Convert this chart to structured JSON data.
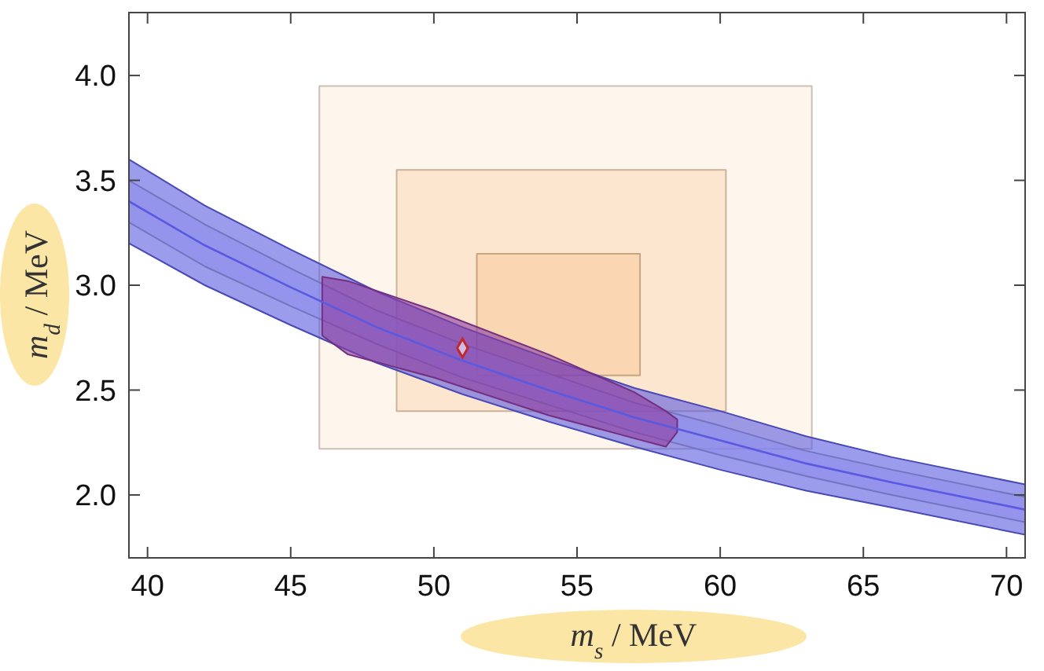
{
  "chart_data": {
    "type": "line",
    "xlabel": "m$_{s}$ / MeV",
    "ylabel": "m$_{d}$ / MeV",
    "xlim": [
      39.35,
      70.65
    ],
    "ylim": [
      1.7,
      4.3
    ],
    "xticks": [
      40,
      45,
      50,
      55,
      60,
      65,
      70
    ],
    "yticks": [
      {
        "value": 2,
        "label": "2.0"
      },
      {
        "value": 2.5,
        "label": "2.5"
      },
      {
        "value": 3,
        "label": "3.0"
      },
      {
        "value": 3.5,
        "label": "3.5"
      },
      {
        "value": 4,
        "label": "4.0"
      }
    ],
    "grid": false,
    "series": [
      {
        "color": "#fdeee0",
        "x": [
          46.0,
          63.2
        ],
        "values": [
          null,
          null
        ],
        "lower": [
          2.22,
          2.22
        ],
        "upper": [
          3.95,
          3.95
        ]
      },
      {
        "color": "#fbdcbd",
        "x": [
          48.7,
          60.2
        ],
        "values": [
          null,
          null
        ],
        "lower": [
          2.4,
          2.4
        ],
        "upper": [
          3.55,
          3.55
        ]
      },
      {
        "color": "#f9cb9f",
        "x": [
          51.5,
          57.2
        ],
        "values": [
          null,
          null
        ],
        "lower": [
          2.57,
          2.57
        ],
        "upper": [
          3.15,
          3.15
        ]
      },
      {
        "color": "#5a5ae0",
        "x": [
          39.35,
          42,
          45,
          48,
          51,
          54,
          57,
          60,
          63,
          66,
          70.65
        ],
        "values": [
          3.4,
          3.19,
          2.99,
          2.8,
          2.64,
          2.5,
          2.37,
          2.26,
          2.15,
          2.06,
          1.93
        ],
        "lower": [
          3.2,
          3.0,
          2.81,
          2.63,
          2.48,
          2.35,
          2.23,
          2.12,
          2.02,
          1.94,
          1.81
        ],
        "upper": [
          3.6,
          3.38,
          3.17,
          2.97,
          2.8,
          2.65,
          2.51,
          2.4,
          2.28,
          2.18,
          2.05
        ]
      },
      {
        "color": "#9090ee",
        "x": [
          39.35,
          42,
          45,
          48,
          51,
          54,
          57,
          60,
          63,
          66,
          70.65
        ],
        "values": [
          null,
          null,
          null,
          null,
          null,
          null,
          null,
          null,
          null,
          null,
          null
        ],
        "lower": [
          3.3,
          3.09,
          2.9,
          2.72,
          2.56,
          2.43,
          2.3,
          2.19,
          2.09,
          2.0,
          1.87
        ],
        "upper": [
          3.5,
          3.29,
          3.08,
          2.88,
          2.72,
          2.58,
          2.44,
          2.33,
          2.21,
          2.12,
          1.99
        ]
      },
      {
        "color": "#8e3a9e",
        "x": [
          46.1,
          47,
          50,
          54,
          57,
          58.1,
          58.5
        ],
        "values": [
          null,
          null,
          null,
          null,
          null,
          null,
          null
        ],
        "lower": [
          2.76,
          2.67,
          2.56,
          2.38,
          2.27,
          2.23,
          2.3
        ],
        "upper": [
          3.04,
          3.02,
          2.88,
          2.67,
          2.49,
          2.4,
          2.36
        ]
      },
      {
        "type": "scatter",
        "color": "#c0282d",
        "marker": "diamond",
        "x": [
          51.0
        ],
        "values": [
          2.7
        ]
      }
    ]
  }
}
